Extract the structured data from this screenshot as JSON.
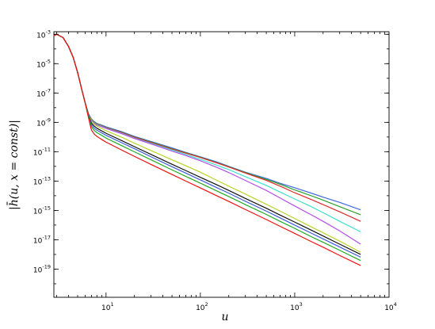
{
  "chart_data": {
    "type": "line",
    "title": "",
    "xlabel": "u",
    "ylabel": "|h̄(u, x = const)|",
    "xscale": "log",
    "yscale": "log",
    "xlim": [
      2.8,
      10000
    ],
    "ylim": [
      1.2e-21,
      0.0015
    ],
    "grid": false,
    "x_ticks": [
      {
        "base": "10",
        "exp": "1",
        "value": 10
      },
      {
        "base": "10",
        "exp": "2",
        "value": 100
      },
      {
        "base": "10",
        "exp": "3",
        "value": 1000
      },
      {
        "base": "10",
        "exp": "4",
        "value": 10000
      }
    ],
    "y_ticks": [
      {
        "base": "10",
        "exp": "-3",
        "value": 0.001
      },
      {
        "base": "10",
        "exp": "-5",
        "value": 1e-05
      },
      {
        "base": "10",
        "exp": "-7",
        "value": 1e-07
      },
      {
        "base": "10",
        "exp": "-9",
        "value": 1e-09
      },
      {
        "base": "10",
        "exp": "-11",
        "value": 1e-11
      },
      {
        "base": "10",
        "exp": "-13",
        "value": 1e-13
      },
      {
        "base": "10",
        "exp": "-15",
        "value": 1e-15
      },
      {
        "base": "10",
        "exp": "-17",
        "value": 1e-17
      },
      {
        "base": "10",
        "exp": "-19",
        "value": 1e-19
      }
    ],
    "x": [
      2.8,
      3.0,
      3.5,
      4.0,
      4.5,
      5.0,
      5.5,
      6.0,
      6.5,
      7.0,
      7.5,
      8.0,
      9.0,
      10,
      15,
      20,
      30,
      50,
      70,
      100,
      150,
      200,
      300,
      500,
      700,
      1000,
      1500,
      2000,
      3000,
      5000
    ],
    "series": [
      {
        "color": "#4169e1",
        "values": [
          0.0008,
          0.001,
          0.0006,
          0.00015,
          2.5e-05,
          2.5e-06,
          2e-07,
          2.2e-08,
          4e-09,
          1.7e-09,
          1.1e-09,
          8.5e-10,
          6.5e-10,
          5e-10,
          2.2e-10,
          1.1e-10,
          5e-11,
          1.8e-11,
          9e-12,
          4.5e-12,
          2e-12,
          1e-12,
          4e-13,
          1.5e-13,
          7e-14,
          3.5e-14,
          1.5e-14,
          8e-15,
          3.5e-15,
          1.1e-15
        ]
      },
      {
        "color": "#2ca02c",
        "values": [
          0.0008,
          0.001,
          0.0006,
          0.00015,
          2.5e-05,
          2.5e-06,
          2e-07,
          2.2e-08,
          4e-09,
          1.6e-09,
          1e-09,
          8e-10,
          6e-10,
          4.5e-10,
          2e-10,
          1e-10,
          4.5e-11,
          1.6e-11,
          8.5e-12,
          4.2e-12,
          1.8e-12,
          9.5e-13,
          3.8e-13,
          1.3e-13,
          6e-14,
          2.5e-14,
          1e-14,
          5e-15,
          1.8e-15,
          5e-16
        ]
      },
      {
        "color": "#dd2a2a",
        "values": [
          0.0008,
          0.001,
          0.0006,
          0.00015,
          2.5e-05,
          2.5e-06,
          2e-07,
          2.2e-08,
          4e-09,
          1.5e-09,
          9.5e-10,
          7.5e-10,
          5.7e-10,
          4.3e-10,
          1.9e-10,
          9.5e-11,
          4.2e-11,
          1.5e-11,
          8e-12,
          4e-12,
          1.7e-12,
          9e-13,
          3.5e-13,
          1.1e-13,
          4.5e-14,
          1.6e-14,
          5.5e-15,
          2.5e-15,
          8e-16,
          1.8e-16
        ]
      },
      {
        "color": "#40e0d0",
        "values": [
          0.0008,
          0.001,
          0.0006,
          0.00015,
          2.5e-05,
          2.5e-06,
          2e-07,
          2.2e-08,
          4e-09,
          1.4e-09,
          9e-10,
          7e-10,
          5.3e-10,
          4e-10,
          1.7e-10,
          8.5e-11,
          3.7e-11,
          1.3e-11,
          6.5e-12,
          3e-12,
          1.2e-12,
          6e-13,
          2e-13,
          5e-14,
          1.8e-14,
          6e-15,
          1.8e-15,
          7e-16,
          1.8e-16,
          3.5e-17
        ]
      },
      {
        "color": "#b44de8",
        "values": [
          0.0008,
          0.001,
          0.0006,
          0.00015,
          2.5e-05,
          2.5e-06,
          2e-07,
          2.2e-08,
          4e-09,
          1.3e-09,
          8.5e-10,
          6.5e-10,
          5e-10,
          3.8e-10,
          1.6e-10,
          8e-11,
          3.4e-11,
          1.1e-11,
          5.5e-12,
          2.4e-12,
          8.5e-13,
          3.8e-13,
          1.1e-13,
          2.3e-14,
          7e-15,
          2e-15,
          5e-16,
          1.8e-16,
          4e-17,
          5e-18
        ]
      },
      {
        "color": "#b8d42a",
        "values": [
          0.0008,
          0.001,
          0.0006,
          0.00015,
          2.5e-05,
          2.5e-06,
          2e-07,
          2.2e-08,
          3.8e-09,
          1.2e-09,
          7.5e-10,
          5.5e-10,
          3.8e-10,
          2.7e-10,
          9e-11,
          3.8e-11,
          1.2e-11,
          2.8e-12,
          1.1e-12,
          4e-13,
          1.1e-13,
          4.5e-14,
          1.3e-14,
          2.6e-15,
          9e-16,
          2.8e-16,
          7.5e-17,
          3e-17,
          8e-18,
          1.4e-18
        ]
      },
      {
        "color": "#111111",
        "values": [
          0.0008,
          0.001,
          0.0006,
          0.00015,
          2.5e-05,
          2.5e-06,
          2e-07,
          2.2e-08,
          3.5e-09,
          9e-10,
          5.5e-10,
          4e-10,
          2.6e-10,
          1.8e-10,
          5.3e-11,
          2.2e-11,
          6.5e-12,
          1.4e-12,
          5.2e-13,
          1.8e-13,
          5.5e-14,
          2.3e-14,
          6.5e-15,
          1.4e-15,
          4.8e-16,
          1.6e-16,
          4.5e-17,
          1.8e-17,
          5e-18,
          1e-18
        ]
      },
      {
        "color": "#3b5bdb",
        "values": [
          0.0008,
          0.001,
          0.0006,
          0.00015,
          2.5e-05,
          2.5e-06,
          2e-07,
          2.2e-08,
          3.2e-09,
          7e-10,
          4e-10,
          2.9e-10,
          1.9e-10,
          1.3e-10,
          3.8e-11,
          1.6e-11,
          4.5e-12,
          9.5e-13,
          3.5e-13,
          1.2e-13,
          3.5e-14,
          1.5e-14,
          4.2e-15,
          9e-16,
          3.1e-16,
          1e-16,
          2.8e-17,
          1.15e-17,
          3.2e-18,
          6.5e-19
        ]
      },
      {
        "color": "#22aa22",
        "values": [
          0.0008,
          0.001,
          0.0006,
          0.00015,
          2.5e-05,
          2.5e-06,
          2e-07,
          2.2e-08,
          2.8e-09,
          5e-10,
          2.8e-10,
          2e-10,
          1.3e-10,
          8.5e-11,
          2.4e-11,
          9.8e-12,
          2.8e-12,
          5.8e-13,
          2.1e-13,
          7.2e-14,
          2.1e-14,
          8.8e-15,
          2.5e-15,
          5.3e-16,
          1.8e-16,
          6e-17,
          1.6e-17,
          6.8e-18,
          1.9e-18,
          3.8e-19
        ]
      },
      {
        "color": "#ee1111",
        "values": [
          0.0008,
          0.001,
          0.0006,
          0.00015,
          2.5e-05,
          2.5e-06,
          2e-07,
          2.2e-08,
          2.2e-09,
          3e-10,
          1.6e-10,
          1.1e-10,
          6.8e-11,
          4.5e-11,
          1.2e-11,
          4.8e-12,
          1.35e-12,
          2.8e-13,
          1e-13,
          3.4e-14,
          9.8e-15,
          4.1e-15,
          1.15e-15,
          2.4e-16,
          8.2e-17,
          2.7e-17,
          7.5e-18,
          3.1e-18,
          8.5e-19,
          1.75e-19
        ]
      }
    ]
  }
}
